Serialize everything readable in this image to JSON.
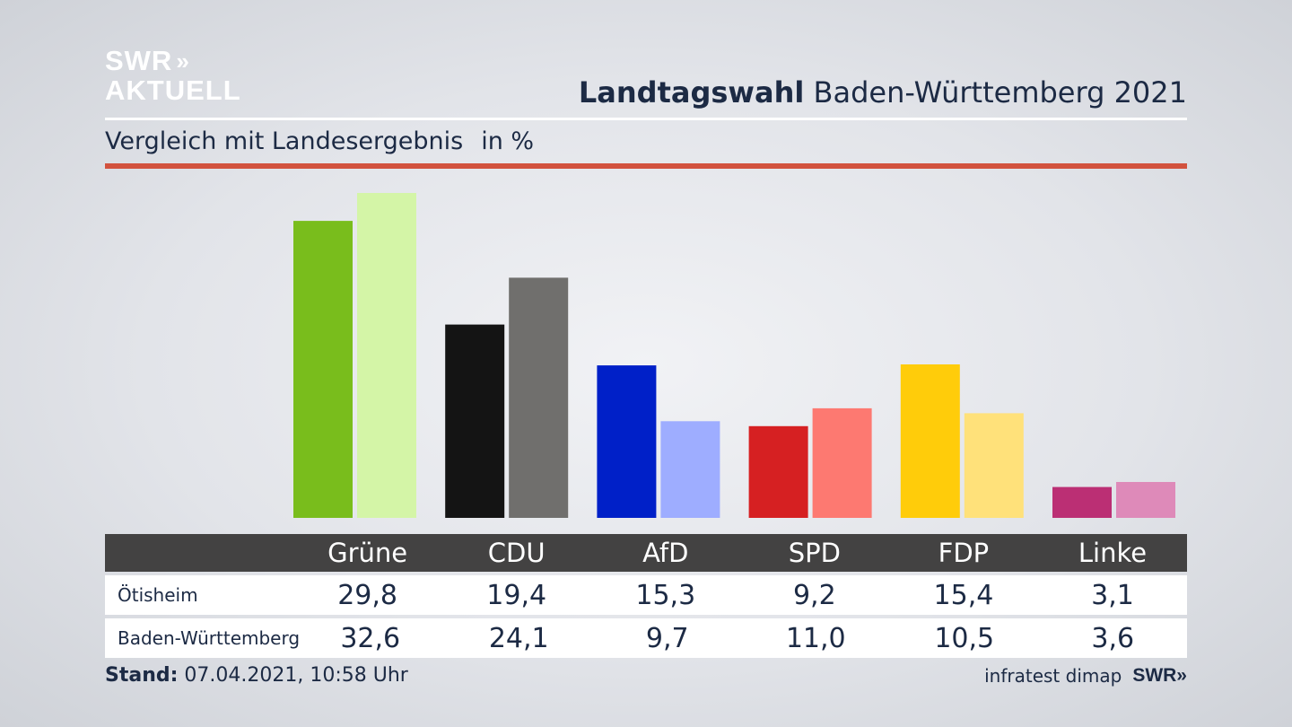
{
  "logo": {
    "line1": "SWR",
    "chevrons": "»",
    "line2": "AKTUELL"
  },
  "header": {
    "title_bold": "Landtagswahl",
    "title_rest": "Baden-Württemberg 2021"
  },
  "subtitle": {
    "text": "Vergleich mit Landesergebnis",
    "unit": "in %"
  },
  "footer": {
    "stand_label": "Stand:",
    "stand_value": "07.04.2021, 10:58 Uhr",
    "source": "infratest dimap",
    "brand": "SWR»"
  },
  "table": {
    "rows": [
      {
        "label": "Ötisheim",
        "values": [
          "29,8",
          "19,4",
          "15,3",
          "9,2",
          "15,4",
          "3,1"
        ]
      },
      {
        "label": "Baden-Württemberg",
        "values": [
          "32,6",
          "24,1",
          "9,7",
          "11,0",
          "10,5",
          "3,6"
        ]
      }
    ]
  },
  "chart_data": {
    "type": "bar",
    "title": "Landtagswahl Baden-Württemberg 2021",
    "subtitle": "Vergleich mit Landesergebnis in %",
    "categories": [
      "Grüne",
      "CDU",
      "AfD",
      "SPD",
      "FDP",
      "Linke"
    ],
    "series": [
      {
        "name": "Ötisheim",
        "values": [
          29.8,
          19.4,
          15.3,
          9.2,
          15.4,
          3.1
        ],
        "colors": [
          "#79bd1c",
          "#141414",
          "#0020c8",
          "#d62022",
          "#ffcc0a",
          "#bb2f74"
        ]
      },
      {
        "name": "Baden-Württemberg",
        "values": [
          32.6,
          24.1,
          9.7,
          11.0,
          10.5,
          3.6
        ],
        "colors": [
          "#d4f5a7",
          "#706f6d",
          "#9eadff",
          "#fd7971",
          "#ffe17a",
          "#de8ab9"
        ]
      }
    ],
    "ylim": [
      0,
      32.6
    ],
    "xlabel": "",
    "ylabel": ""
  }
}
